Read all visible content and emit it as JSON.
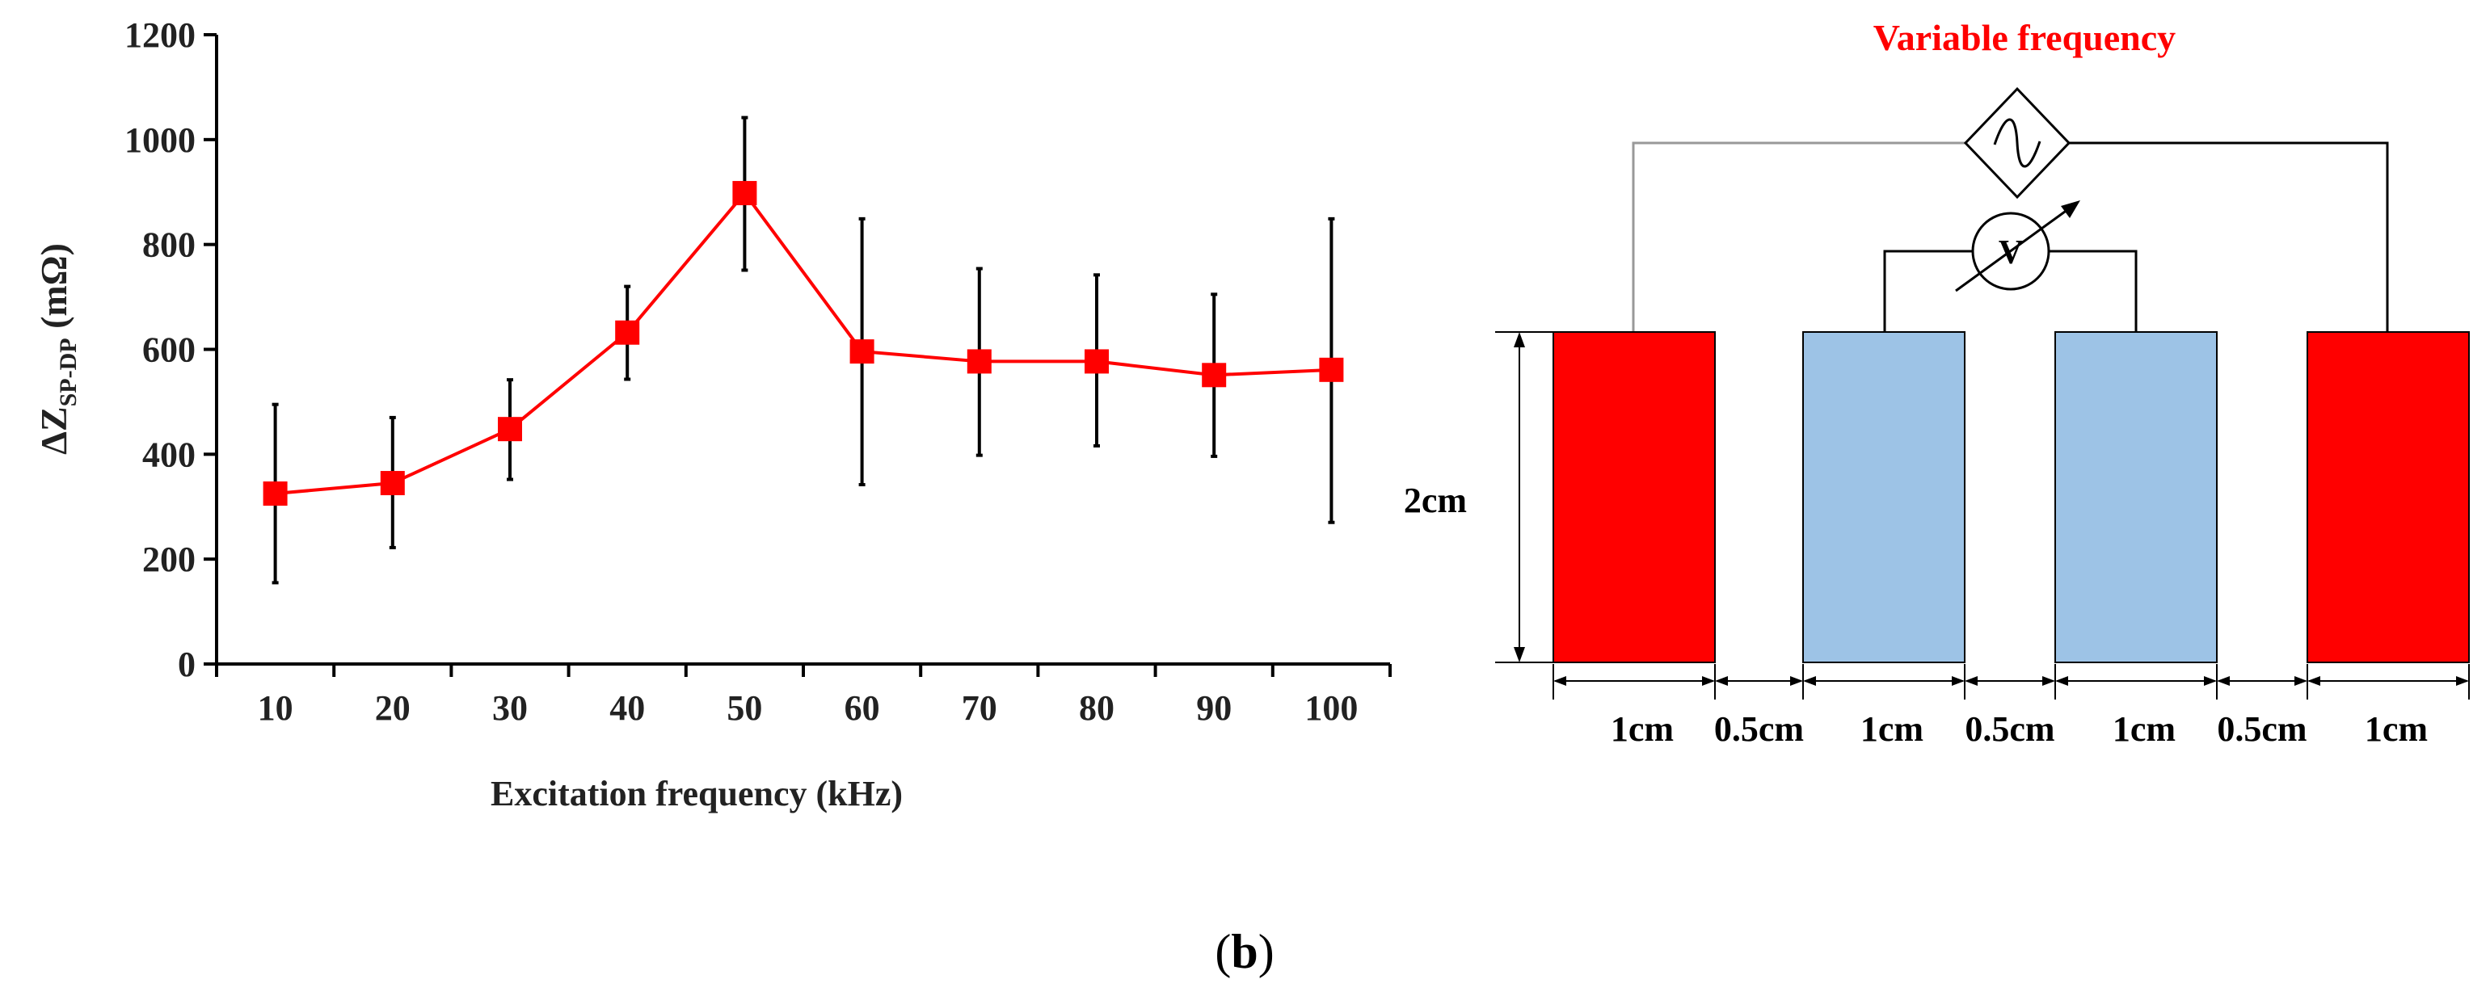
{
  "chart_data": {
    "type": "line",
    "xlabel": "Excitation frequency (kHz)",
    "ylabel": {
      "main": "ΔZ",
      "subscript": "SP-DP",
      "unit": " (mΩ)"
    },
    "categories": [
      "10",
      "20",
      "30",
      "40",
      "50",
      "60",
      "70",
      "80",
      "90",
      "100"
    ],
    "ylim": [
      0,
      1200
    ],
    "yticks": [
      "0",
      "200",
      "400",
      "600",
      "800",
      "1000",
      "1200"
    ],
    "series": [
      {
        "name": "ΔZ SP-DP",
        "color": "#ff0000",
        "values": [
          325,
          345,
          448,
          632,
          898,
          596,
          577,
          577,
          551,
          561
        ],
        "err_low": [
          155,
          222,
          352,
          543,
          751,
          342,
          398,
          416,
          396,
          270
        ],
        "err_high": [
          495,
          470,
          542,
          720,
          1042,
          849,
          754,
          742,
          705,
          849
        ]
      }
    ]
  },
  "diagram": {
    "source_label": "Variable frequency",
    "source_label_color": "#ff0000",
    "source_icon": "ac-source-icon",
    "meter_symbol": "V",
    "meter_icon": "variable-voltmeter-icon",
    "height_label": "2cm",
    "electrodes": [
      {
        "name": "current-electrode-left",
        "color": "#ff0000"
      },
      {
        "name": "potential-electrode-left",
        "color": "#9dc3e6"
      },
      {
        "name": "potential-electrode-right",
        "color": "#9dc3e6"
      },
      {
        "name": "current-electrode-right",
        "color": "#ff0000"
      }
    ],
    "dimension_labels": [
      "1cm",
      "0.5cm",
      "1cm",
      "0.5cm",
      "1cm",
      "0.5cm",
      "1cm"
    ]
  },
  "caption": {
    "open": "(",
    "letter": "b",
    "close": ")"
  }
}
